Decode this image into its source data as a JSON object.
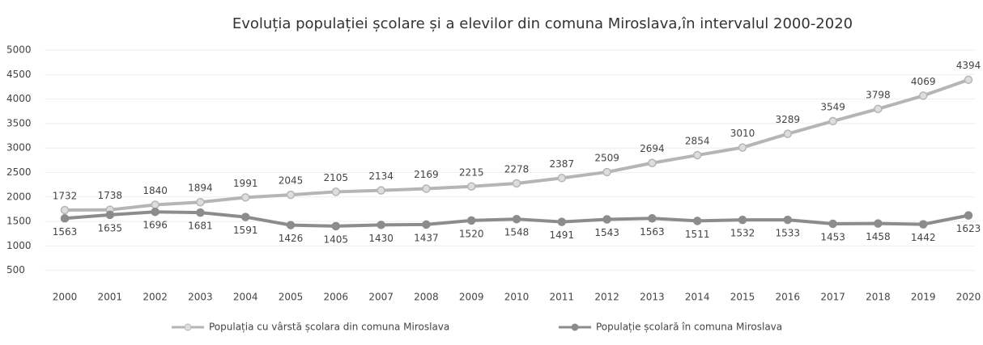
{
  "chart_data": {
    "type": "line",
    "title": "Evoluția populației școlare și a elevilor din comuna Miroslava,în intervalul 2000-2020",
    "categories": [
      "2000",
      "2001",
      "2002",
      "2003",
      "2004",
      "2005",
      "2006",
      "2007",
      "2008",
      "2009",
      "2010",
      "2011",
      "2012",
      "2013",
      "2014",
      "2015",
      "2016",
      "2017",
      "2018",
      "2019",
      "2020"
    ],
    "series": [
      {
        "name": "Populația cu vârstă școlara din comuna Miroslava",
        "color": "#b5b5b5",
        "values": [
          1732,
          1738,
          1840,
          1894,
          1991,
          2045,
          2105,
          2134,
          2169,
          2215,
          2278,
          2387,
          2509,
          2694,
          2854,
          3010,
          3289,
          3549,
          3798,
          4069,
          4394
        ]
      },
      {
        "name": "Populație școlară în comuna Miroslava",
        "color": "#8c8c8c",
        "values": [
          1563,
          1635,
          1696,
          1681,
          1591,
          1426,
          1405,
          1430,
          1437,
          1520,
          1548,
          1491,
          1543,
          1563,
          1511,
          1532,
          1533,
          1453,
          1458,
          1442,
          1623
        ]
      }
    ],
    "ylim": [
      0,
      5000
    ],
    "yticks": [
      500,
      1000,
      1500,
      2000,
      2500,
      3000,
      3500,
      4000,
      4500,
      5000
    ],
    "grid": true
  }
}
